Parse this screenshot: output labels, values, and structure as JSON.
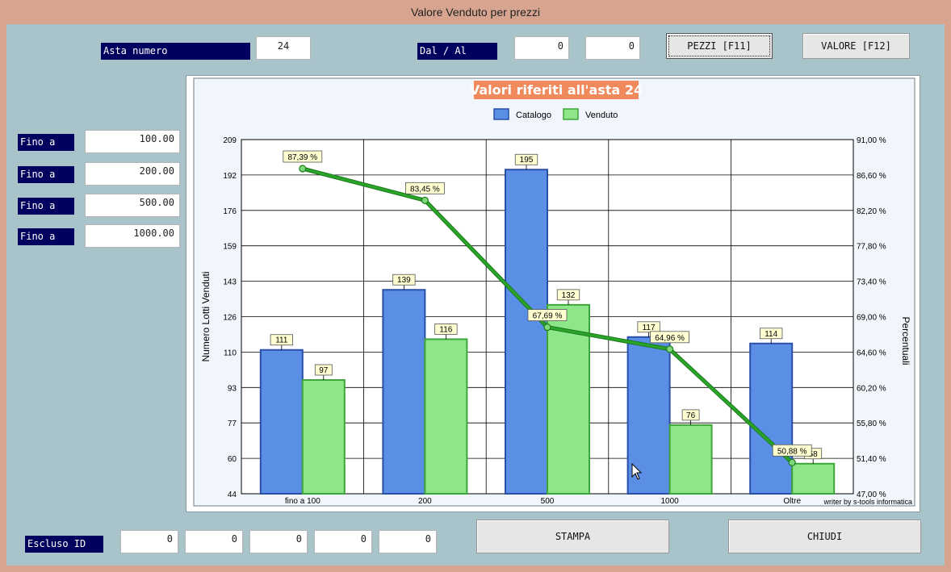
{
  "window": {
    "title": "Valore Venduto per prezzi"
  },
  "asta": {
    "label": "Asta numero",
    "value": "24"
  },
  "range": {
    "label": "Dal / Al",
    "from": "0",
    "to": "0"
  },
  "buttons": {
    "pezzi": "PEZZI [F11]",
    "valore": "VALORE [F12]",
    "stampa": "STAMPA",
    "chiudi": "CHIUDI"
  },
  "fino": [
    {
      "label": "Fino a",
      "value": "100.00"
    },
    {
      "label": "Fino a",
      "value": "200.00"
    },
    {
      "label": "Fino a",
      "value": "500.00"
    },
    {
      "label": "Fino a",
      "value": "1000.00"
    }
  ],
  "escluso": {
    "label": "Escluso ID",
    "values": [
      "0",
      "0",
      "0",
      "0",
      "0"
    ]
  },
  "chart_data": {
    "type": "bar",
    "title": "Valori riferiti all'asta 24",
    "categories": [
      "fino a  100",
      "200",
      "500",
      "1000",
      "Oltre"
    ],
    "series": [
      {
        "name": "Catalogo",
        "values": [
          111,
          139,
          195,
          117,
          114
        ],
        "color": "#5b8fe6"
      },
      {
        "name": "Venduto",
        "values": [
          97,
          116,
          132,
          76,
          58
        ],
        "color": "#8ee68a"
      }
    ],
    "line": {
      "values": [
        87.39,
        83.45,
        67.69,
        64.96,
        50.88
      ],
      "labels": [
        "87,39 %",
        "83,45 %",
        "67,69 %",
        "64,96 %",
        "50,88 %"
      ],
      "color": "#2aa52a"
    },
    "ylabel": "Numero Lotti Venduti",
    "y2label": "Percentuali",
    "ylim": [
      44,
      209
    ],
    "yticks": [
      "209",
      "192",
      "176",
      "159",
      "143",
      "126",
      "110",
      "93",
      "77",
      "60",
      "44"
    ],
    "y2lim": [
      47.0,
      91.0
    ],
    "y2ticks": [
      "91,00 %",
      "86,60 %",
      "82,20 %",
      "77,80 %",
      "73,40 %",
      "69,00 %",
      "64,60 %",
      "60,20 %",
      "55,80 %",
      "51,40 %",
      "47,00 %"
    ],
    "legend_position": "top-center",
    "grid": true,
    "footer": "writer by s-tools informatica"
  }
}
